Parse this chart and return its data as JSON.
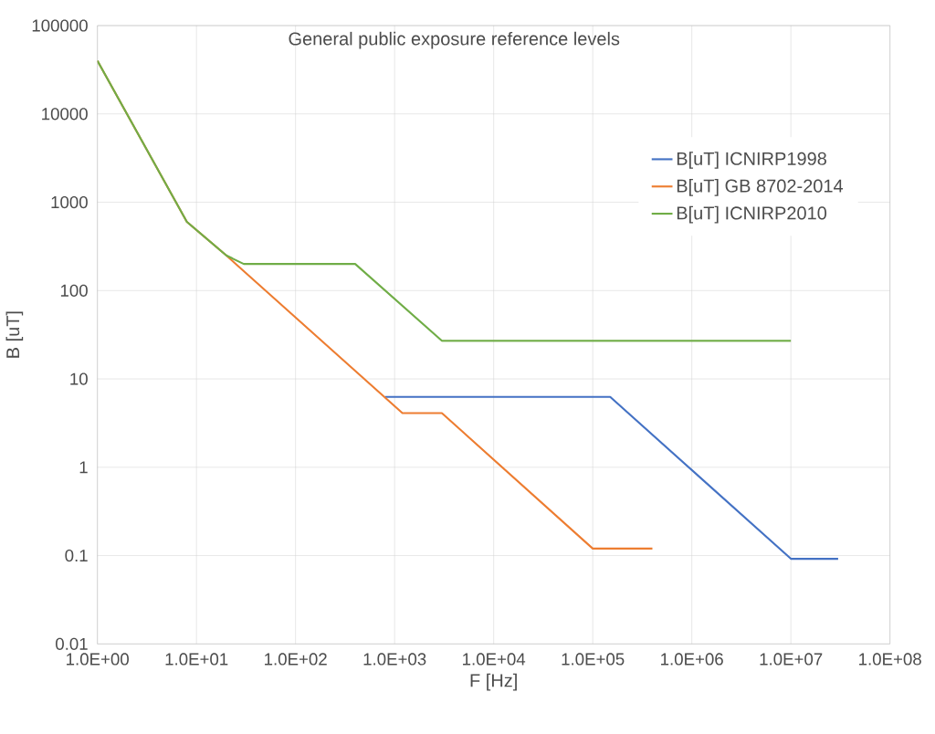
{
  "chart_data": {
    "type": "line",
    "title": "General public exposure reference levels",
    "xlabel": "F [Hz]",
    "ylabel": "B [uT]",
    "log": "xy",
    "grid": true,
    "legend": "right",
    "marker": "none",
    "line_style": "solid",
    "xlim": [
      1,
      100000000
    ],
    "ylim": [
      0.01,
      100000
    ],
    "xticks": [
      {
        "value": 1,
        "label": "1.0E+00"
      },
      {
        "value": 10,
        "label": "1.0E+01"
      },
      {
        "value": 100,
        "label": "1.0E+02"
      },
      {
        "value": 1000,
        "label": "1.0E+03"
      },
      {
        "value": 10000,
        "label": "1.0E+04"
      },
      {
        "value": 100000,
        "label": "1.0E+05"
      },
      {
        "value": 1000000,
        "label": "1.0E+06"
      },
      {
        "value": 10000000,
        "label": "1.0E+07"
      },
      {
        "value": 100000000,
        "label": "1.0E+08"
      }
    ],
    "yticks": [
      0.01,
      0.1,
      1,
      10,
      100,
      1000,
      10000,
      100000
    ],
    "series": [
      {
        "name": "B[uT] ICNIRP1998",
        "color": "#4472c4",
        "x": [
          800,
          150000,
          10000000,
          30000000
        ],
        "values": [
          6.25,
          6.25,
          0.092,
          0.092
        ]
      },
      {
        "name": "B[uT] GB 8702-2014",
        "color": "#ed7d31",
        "x": [
          1,
          8,
          20,
          1200,
          3000,
          100000,
          400000
        ],
        "values": [
          40000,
          600,
          250,
          4.1,
          4.1,
          0.12,
          0.12
        ]
      },
      {
        "name": "B[uT] ICNIRP2010",
        "color": "#70ad47",
        "x": [
          1,
          8,
          20,
          30,
          400,
          3000,
          10000000
        ],
        "values": [
          40000,
          600,
          250,
          200,
          200,
          27,
          27
        ]
      }
    ]
  }
}
